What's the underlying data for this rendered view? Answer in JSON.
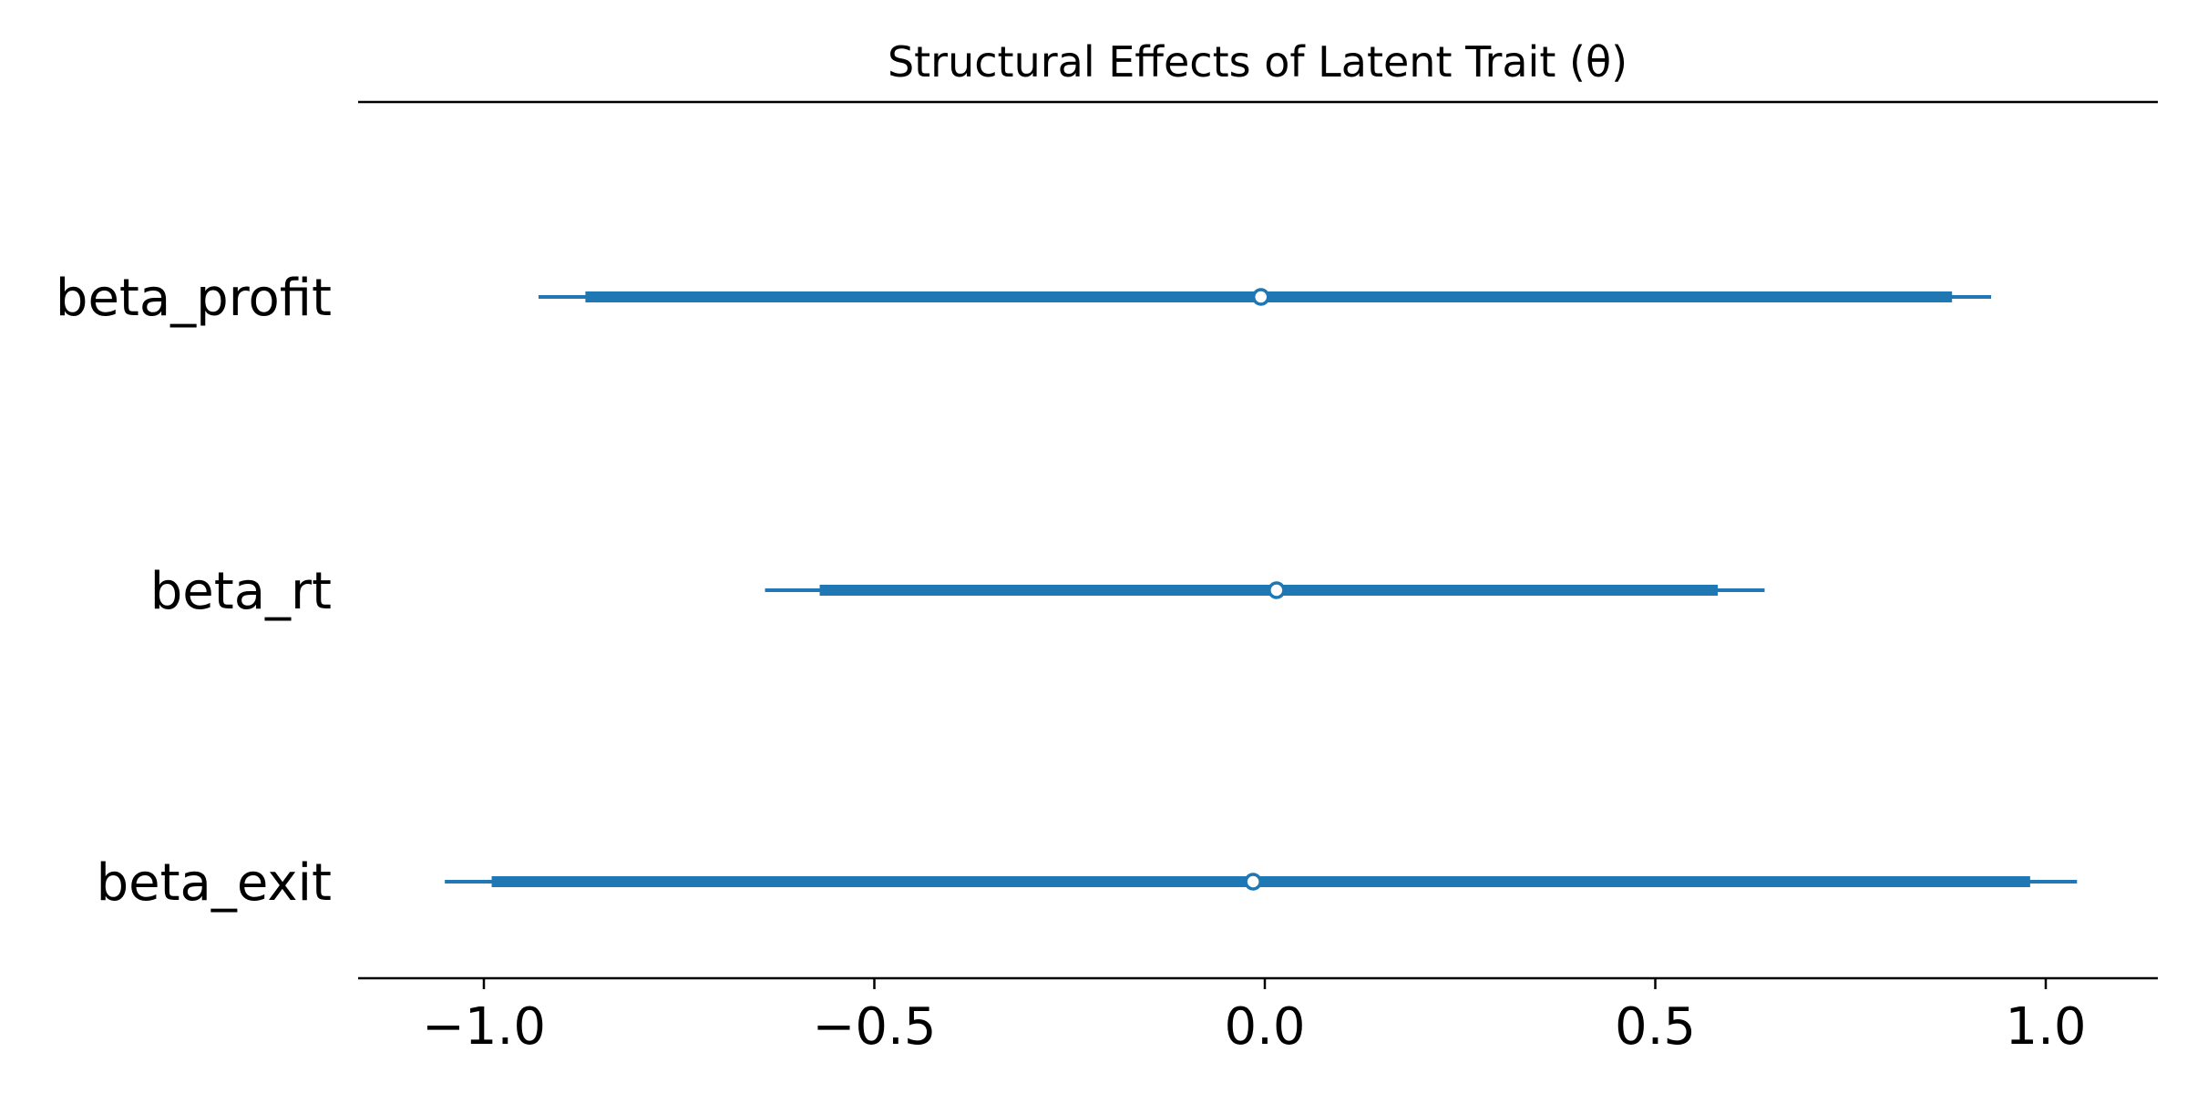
{
  "chart_data": {
    "type": "forest",
    "title": "Structural Effects of Latent Trait (θ)",
    "xlim": [
      -1.15,
      1.15
    ],
    "xticks": [
      -1.0,
      -0.5,
      0.0,
      0.5,
      1.0
    ],
    "xtick_labels": [
      "−1.0",
      "−0.5",
      "0.0",
      "0.5",
      "1.0"
    ],
    "parameters": [
      {
        "name": "beta_profit",
        "estimate": -0.005,
        "hdi_outer": [
          -0.93,
          0.93
        ],
        "hdi_inner": [
          -0.87,
          0.88
        ]
      },
      {
        "name": "beta_rt",
        "estimate": 0.015,
        "hdi_outer": [
          -0.64,
          0.64
        ],
        "hdi_inner": [
          -0.57,
          0.58
        ]
      },
      {
        "name": "beta_exit",
        "estimate": -0.015,
        "hdi_outer": [
          -1.05,
          1.04
        ],
        "hdi_inner": [
          -0.99,
          0.98
        ]
      }
    ],
    "color": "#1f77b4",
    "grid": false
  }
}
